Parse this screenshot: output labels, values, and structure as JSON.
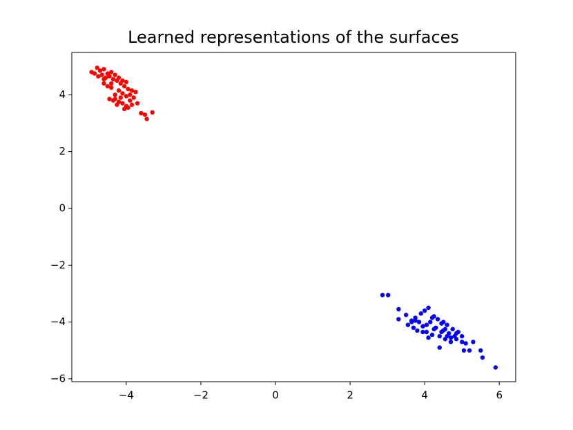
{
  "chart_data": {
    "type": "scatter",
    "title": "Learned representations of the surfaces",
    "xlim": [
      -5.46,
      6.44
    ],
    "ylim": [
      -6.1,
      5.49
    ],
    "xticks": [
      {
        "value": -4,
        "label": "−4"
      },
      {
        "value": -2,
        "label": "−2"
      },
      0,
      2,
      4,
      6
    ],
    "yticks": [
      {
        "value": -6,
        "label": "−6"
      },
      {
        "value": -4,
        "label": "−4"
      },
      {
        "value": -2,
        "label": "−2"
      },
      0,
      2,
      4
    ],
    "series": [
      {
        "color": "#ff0000",
        "x": [
          -4.93,
          -4.78,
          -4.7,
          -4.65,
          -4.6,
          -4.55,
          -4.5,
          -4.45,
          -4.4,
          -4.35,
          -4.3,
          -4.25,
          -4.2,
          -4.15,
          -4.1,
          -4.05,
          -4.0,
          -3.95,
          -3.9,
          -3.85,
          -3.8,
          -3.75,
          -3.7,
          -3.6,
          -3.5,
          -3.45,
          -3.3,
          -4.6,
          -4.5,
          -4.4,
          -4.3,
          -4.3,
          -4.2,
          -4.1,
          -4.0,
          -3.95,
          -3.9,
          -4.05,
          -4.25,
          -4.45,
          -4.35,
          -4.15,
          -4.2,
          -4.1,
          -4.6,
          -4.75,
          -4.85,
          -4.4,
          -3.85,
          -4.0
        ],
        "values": [
          4.8,
          4.95,
          4.85,
          4.7,
          4.9,
          4.6,
          4.75,
          4.65,
          4.8,
          4.55,
          4.7,
          4.5,
          4.6,
          4.4,
          4.5,
          4.3,
          4.45,
          4.2,
          4.0,
          4.15,
          3.9,
          4.1,
          3.7,
          3.35,
          3.3,
          3.15,
          3.38,
          4.4,
          4.3,
          4.25,
          4.0,
          3.85,
          3.75,
          3.7,
          3.6,
          3.55,
          3.8,
          3.5,
          3.65,
          3.85,
          3.8,
          3.9,
          4.15,
          4.05,
          4.55,
          4.65,
          4.75,
          4.4,
          3.65,
          3.95
        ]
      },
      {
        "color": "#0000ff",
        "x": [
          2.87,
          3.02,
          3.3,
          3.3,
          3.5,
          3.55,
          3.65,
          3.7,
          3.75,
          3.8,
          3.85,
          3.9,
          3.95,
          4.0,
          4.05,
          4.1,
          4.15,
          4.2,
          4.25,
          4.3,
          4.35,
          4.4,
          4.45,
          4.5,
          4.55,
          4.6,
          4.65,
          4.7,
          4.75,
          4.8,
          4.85,
          4.9,
          5.0,
          5.05,
          5.1,
          5.2,
          5.3,
          5.5,
          5.55,
          5.9,
          4.4,
          4.1,
          3.95,
          4.5,
          4.6,
          4.7,
          4.25,
          3.65,
          4.05,
          4.45,
          4.85,
          5.0,
          3.75,
          4.2,
          4.55
        ],
        "values": [
          -3.05,
          -3.05,
          -3.55,
          -3.9,
          -3.75,
          -4.1,
          -3.95,
          -4.2,
          -3.85,
          -4.3,
          -4.0,
          -3.7,
          -4.15,
          -3.6,
          -4.35,
          -3.5,
          -4.0,
          -4.45,
          -3.8,
          -4.2,
          -3.9,
          -4.5,
          -4.05,
          -4.3,
          -4.6,
          -4.1,
          -4.4,
          -4.7,
          -4.25,
          -4.5,
          -4.6,
          -4.35,
          -4.7,
          -5.0,
          -4.75,
          -5.0,
          -4.7,
          -5.0,
          -5.25,
          -5.6,
          -4.9,
          -4.55,
          -4.35,
          -4.0,
          -4.5,
          -4.55,
          -4.25,
          -4.0,
          -4.1,
          -4.35,
          -4.4,
          -4.5,
          -3.95,
          -3.85,
          -4.25
        ]
      }
    ]
  }
}
